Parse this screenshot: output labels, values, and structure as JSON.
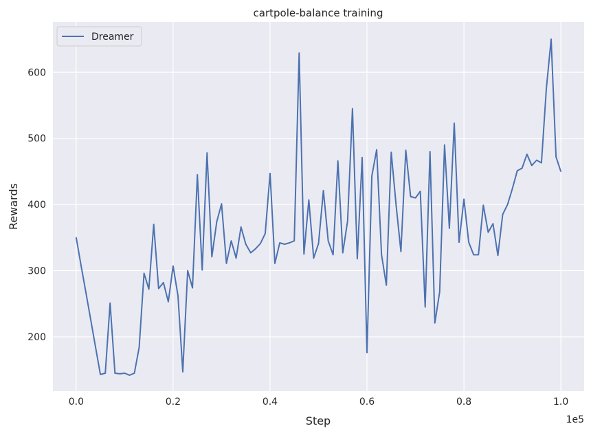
{
  "chart_data": {
    "type": "line",
    "title": "cartpole-balance training",
    "xlabel": "Step",
    "ylabel": "Rewards",
    "x_offset_label": "1e5",
    "xlim": [
      -4800,
      104800
    ],
    "ylim": [
      118,
      676
    ],
    "xticks": [
      0,
      20000,
      40000,
      60000,
      80000,
      100000
    ],
    "xtick_labels": [
      "0.0",
      "0.2",
      "0.4",
      "0.6",
      "0.8",
      "1.0"
    ],
    "yticks": [
      200,
      300,
      400,
      500,
      600
    ],
    "ytick_labels": [
      "200",
      "300",
      "400",
      "500",
      "600"
    ],
    "grid": true,
    "legend_position": "top-left",
    "series": [
      {
        "name": "Dreamer",
        "color": "#4c72b0",
        "x_step": 1000,
        "values": [
          350,
          308,
          267,
          226,
          184,
          143,
          145,
          251,
          145,
          144,
          145,
          142,
          145,
          184,
          296,
          272,
          370,
          273,
          282,
          253,
          307,
          262,
          147,
          300,
          274,
          445,
          301,
          478,
          321,
          374,
          401,
          311,
          345,
          319,
          366,
          340,
          327,
          333,
          341,
          356,
          447,
          311,
          342,
          340,
          342,
          345,
          629,
          325,
          407,
          319,
          341,
          421,
          345,
          324,
          466,
          327,
          375,
          545,
          318,
          471,
          176,
          443,
          483,
          324,
          278,
          479,
          400,
          329,
          482,
          412,
          410,
          420,
          245,
          480,
          221,
          268,
          490,
          364,
          523,
          343,
          408,
          343,
          324,
          324,
          399,
          358,
          371,
          323,
          385,
          400,
          424,
          451,
          455,
          476,
          459,
          467,
          463,
          575,
          650,
          472,
          450
        ]
      }
    ]
  }
}
